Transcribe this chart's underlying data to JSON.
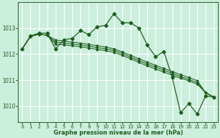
{
  "title": "Graphe pression niveau de la mer (hPa)",
  "bg_color": "#cceedd",
  "grid_color": "#ffffff",
  "line_color": "#1e5c1e",
  "xlim": [
    -0.5,
    23.5
  ],
  "ylim": [
    1009.4,
    1014.0
  ],
  "yticks": [
    1010,
    1011,
    1012,
    1013
  ],
  "xticks": [
    0,
    1,
    2,
    3,
    4,
    5,
    6,
    7,
    8,
    9,
    10,
    11,
    12,
    13,
    14,
    15,
    16,
    17,
    18,
    19,
    20,
    21,
    22,
    23
  ],
  "series_with_markers": [
    [
      1012.2,
      1012.7,
      1012.8,
      1012.8,
      1012.2,
      1012.55,
      1012.6,
      1012.9,
      1012.75,
      1013.05,
      1013.1,
      1013.55,
      1013.2,
      1013.2,
      1013.0,
      1012.35,
      1011.9,
      1012.1,
      1011.1,
      1009.75,
      1010.1,
      1009.7,
      1010.4,
      1010.35
    ]
  ],
  "series_plain": [
    [
      1012.2,
      1012.68,
      1012.76,
      1012.72,
      1012.54,
      1012.5,
      1012.46,
      1012.42,
      1012.37,
      1012.32,
      1012.27,
      1012.2,
      1012.08,
      1011.95,
      1011.82,
      1011.69,
      1011.57,
      1011.45,
      1011.33,
      1011.21,
      1011.1,
      1010.98,
      1010.52,
      1010.35
    ],
    [
      1012.2,
      1012.68,
      1012.76,
      1012.72,
      1012.46,
      1012.43,
      1012.39,
      1012.35,
      1012.3,
      1012.25,
      1012.2,
      1012.14,
      1012.02,
      1011.88,
      1011.75,
      1011.62,
      1011.5,
      1011.38,
      1011.26,
      1011.14,
      1011.03,
      1010.91,
      1010.52,
      1010.35
    ],
    [
      1012.2,
      1012.68,
      1012.76,
      1012.72,
      1012.38,
      1012.36,
      1012.32,
      1012.28,
      1012.23,
      1012.18,
      1012.13,
      1012.07,
      1011.95,
      1011.82,
      1011.68,
      1011.55,
      1011.43,
      1011.31,
      1011.19,
      1011.08,
      1010.97,
      1010.85,
      1010.52,
      1010.35
    ]
  ]
}
